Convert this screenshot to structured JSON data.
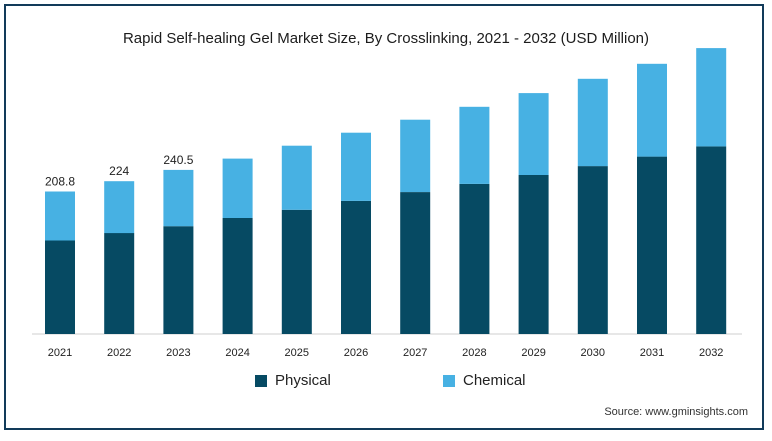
{
  "chart_data": {
    "type": "bar",
    "stacked": true,
    "title": "Rapid Self-healing Gel Market Size, By Crosslinking, 2021 - 2032 (USD Million)",
    "categories": [
      "2021",
      "2022",
      "2023",
      "2024",
      "2025",
      "2026",
      "2027",
      "2028",
      "2029",
      "2030",
      "2031",
      "2032"
    ],
    "series": [
      {
        "name": "Physical",
        "color": "#064a63",
        "values": [
          137,
          148,
          158,
          170,
          182,
          195,
          208,
          220,
          233,
          246,
          260,
          275
        ]
      },
      {
        "name": "Chemical",
        "color": "#47b1e3",
        "values": [
          71.8,
          76,
          82.5,
          87,
          94,
          100,
          106,
          113,
          120,
          128,
          136,
          144
        ]
      }
    ],
    "data_labels": [
      "208.8",
      "224",
      "240.5",
      "",
      "",
      "",
      "",
      "",
      "",
      "",
      "",
      ""
    ],
    "ylim": [
      0,
      425
    ],
    "grid": false,
    "legend_position": "bottom"
  },
  "source": "Source: www.gminsights.com"
}
